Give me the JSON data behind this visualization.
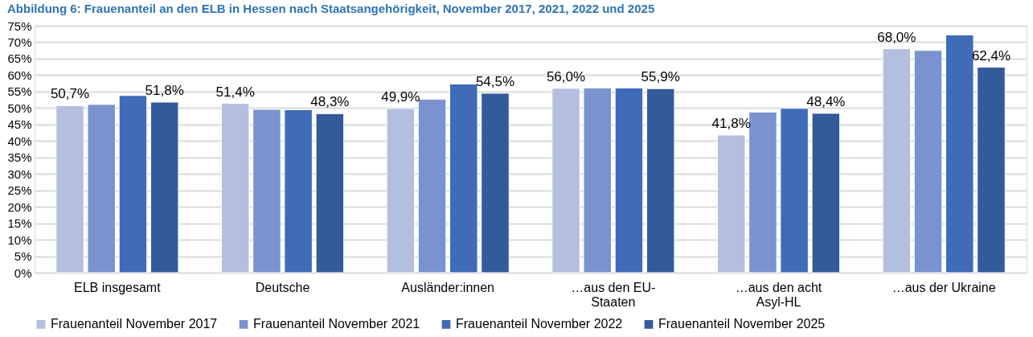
{
  "chart_data": {
    "type": "bar",
    "title": "Abbildung 6: Frauenanteil an den ELB in Hessen nach Staatsangehörigkeit, November 2017, 2021, 2022 und 2025",
    "categories": [
      "ELB insgesamt",
      "Deutsche",
      "Ausländer:innen",
      "…aus den EU-Staaten",
      "…aus den acht Asyl-HL",
      "…aus der Ukraine"
    ],
    "series": [
      {
        "name": "Frauenanteil November 2017",
        "color": "#b4bfe0",
        "values": [
          50.7,
          51.4,
          49.9,
          56.0,
          41.8,
          68.0
        ],
        "value_labels": [
          "50,7%",
          "51,4%",
          "49,9%",
          "56,0%",
          "41,8%",
          "68,0%"
        ]
      },
      {
        "name": "Frauenanteil November 2021",
        "color": "#7a93cf",
        "values": [
          51.1,
          49.6,
          52.7,
          56.1,
          48.8,
          67.5
        ]
      },
      {
        "name": "Frauenanteil November 2022",
        "color": "#3f6bb8",
        "values": [
          53.8,
          49.5,
          57.3,
          56.1,
          49.9,
          72.2
        ]
      },
      {
        "name": "Frauenanteil November 2025",
        "color": "#335a99",
        "values": [
          51.8,
          48.3,
          54.5,
          55.9,
          48.4,
          62.4
        ],
        "value_labels": [
          "51,8%",
          "48,3%",
          "54,5%",
          "55,9%",
          "48,4%",
          "62,4%"
        ]
      }
    ],
    "ylim": [
      0,
      75
    ],
    "yticks": [
      {
        "value": 0,
        "label": "0%"
      },
      {
        "value": 5,
        "label": "5%"
      },
      {
        "value": 10,
        "label": "10%"
      },
      {
        "value": 15,
        "label": "15%"
      },
      {
        "value": 20,
        "label": "20%"
      },
      {
        "value": 25,
        "label": "25%"
      },
      {
        "value": 30,
        "label": "30%"
      },
      {
        "value": 35,
        "label": "35%"
      },
      {
        "value": 40,
        "label": "40%"
      },
      {
        "value": 45,
        "label": "45%"
      },
      {
        "value": 50,
        "label": "50%"
      },
      {
        "value": 55,
        "label": "55%"
      },
      {
        "value": 60,
        "label": "60%"
      },
      {
        "value": 65,
        "label": "65%"
      },
      {
        "value": 70,
        "label": "70%"
      },
      {
        "value": 75,
        "label": "75%"
      }
    ],
    "grid": "y",
    "legend": "bottom"
  }
}
